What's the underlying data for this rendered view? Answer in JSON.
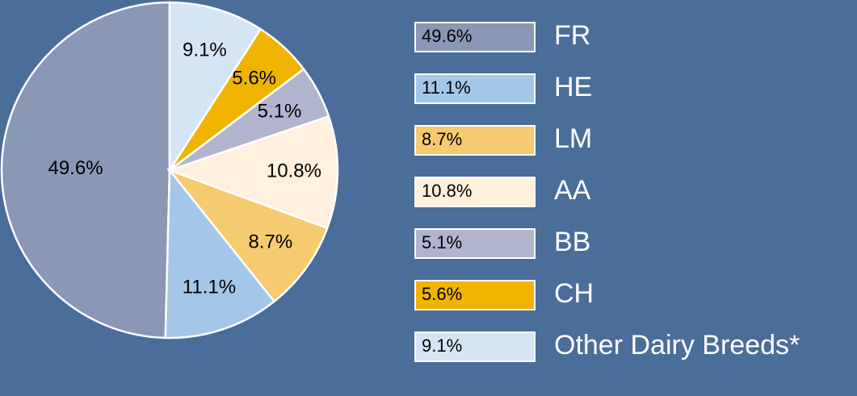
{
  "chart_data": {
    "type": "pie",
    "categories": [
      "FR",
      "HE",
      "LM",
      "AA",
      "BB",
      "CH",
      "Other Dairy Breeds*"
    ],
    "values": [
      49.6,
      11.1,
      8.7,
      10.8,
      5.1,
      5.6,
      9.1
    ],
    "value_labels": [
      "49.6%",
      "11.1%",
      "8.7%",
      "10.8%",
      "5.1%",
      "5.6%",
      "9.1%"
    ],
    "colors": [
      "#8a97b5",
      "#a4c6e8",
      "#f6ca6e",
      "#fff1dd",
      "#b0b4cc",
      "#f0b400",
      "#d6e5f6"
    ],
    "legend": "right"
  }
}
